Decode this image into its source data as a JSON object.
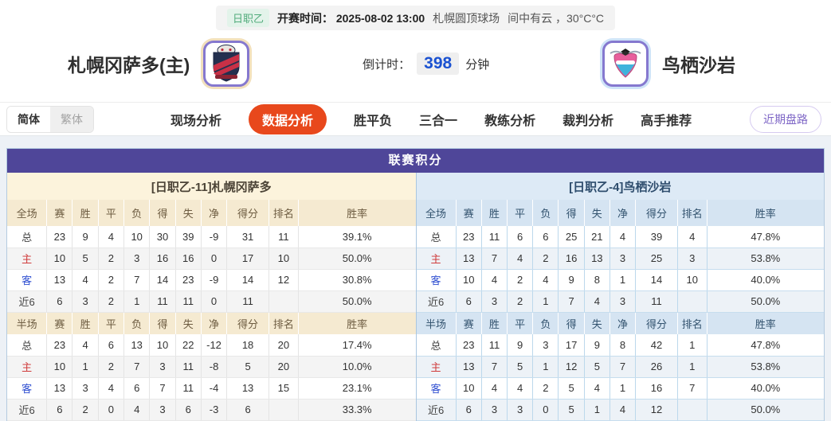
{
  "topbar": {
    "league": "日职乙",
    "kickoff_label": "开赛时间：",
    "kickoff_time": "2025-08-02 13:00",
    "venue": "札幌圆顶球场",
    "weather": "间中有云 ，30°C°C"
  },
  "match": {
    "home_name": "札幌冈萨多(主)",
    "away_name": "鸟栖沙岩",
    "countdown_label": "倒计时：",
    "countdown_value": "398",
    "countdown_unit": "分钟"
  },
  "lang_toggle": {
    "simplified": "简体",
    "traditional": "繁体"
  },
  "nav": {
    "tabs": [
      {
        "label": "现场分析",
        "active": false
      },
      {
        "label": "数据分析",
        "active": true
      },
      {
        "label": "胜平负",
        "active": false
      },
      {
        "label": "三合一",
        "active": false
      },
      {
        "label": "教练分析",
        "active": false
      },
      {
        "label": "裁判分析",
        "active": false
      },
      {
        "label": "高手推荐",
        "active": false
      }
    ],
    "recent_button": "近期盘路"
  },
  "colors": {
    "accent_purple": "#4f4699",
    "active_tab": "#e8481c",
    "home_row_label": "#d03c3c",
    "away_row_label": "#2f4fd1",
    "countdown_blue": "#1b52d1",
    "league_green": "#51ab7b"
  },
  "league_table": {
    "title": "联赛积分",
    "full_header": [
      "全场",
      "赛",
      "胜",
      "平",
      "负",
      "得",
      "失",
      "净",
      "得分",
      "排名",
      "胜率"
    ],
    "half_header": [
      "半场",
      "赛",
      "胜",
      "平",
      "负",
      "得",
      "失",
      "净",
      "得分",
      "排名",
      "胜率"
    ],
    "home": {
      "team_header": "[日职乙-11]札幌冈萨多",
      "full_rows": [
        {
          "label": "总",
          "type": "total",
          "values": [
            "23",
            "9",
            "4",
            "10",
            "30",
            "39",
            "-9",
            "31",
            "11",
            "39.1%"
          ]
        },
        {
          "label": "主",
          "type": "home",
          "values": [
            "10",
            "5",
            "2",
            "3",
            "16",
            "16",
            "0",
            "17",
            "10",
            "50.0%"
          ]
        },
        {
          "label": "客",
          "type": "away",
          "values": [
            "13",
            "4",
            "2",
            "7",
            "14",
            "23",
            "-9",
            "14",
            "12",
            "30.8%"
          ]
        },
        {
          "label": "近6",
          "type": "recent",
          "values": [
            "6",
            "3",
            "2",
            "1",
            "11",
            "11",
            "0",
            "11",
            "",
            "50.0%"
          ]
        }
      ],
      "half_rows": [
        {
          "label": "总",
          "type": "total",
          "values": [
            "23",
            "4",
            "6",
            "13",
            "10",
            "22",
            "-12",
            "18",
            "20",
            "17.4%"
          ]
        },
        {
          "label": "主",
          "type": "home",
          "values": [
            "10",
            "1",
            "2",
            "7",
            "3",
            "11",
            "-8",
            "5",
            "20",
            "10.0%"
          ]
        },
        {
          "label": "客",
          "type": "away",
          "values": [
            "13",
            "3",
            "4",
            "6",
            "7",
            "11",
            "-4",
            "13",
            "15",
            "23.1%"
          ]
        },
        {
          "label": "近6",
          "type": "recent",
          "values": [
            "6",
            "2",
            "0",
            "4",
            "3",
            "6",
            "-3",
            "6",
            "",
            "33.3%"
          ]
        }
      ]
    },
    "away": {
      "team_header": "[日职乙-4]鸟栖沙岩",
      "full_rows": [
        {
          "label": "总",
          "type": "total",
          "values": [
            "23",
            "11",
            "6",
            "6",
            "25",
            "21",
            "4",
            "39",
            "4",
            "47.8%"
          ]
        },
        {
          "label": "主",
          "type": "home",
          "values": [
            "13",
            "7",
            "4",
            "2",
            "16",
            "13",
            "3",
            "25",
            "3",
            "53.8%"
          ]
        },
        {
          "label": "客",
          "type": "away",
          "values": [
            "10",
            "4",
            "2",
            "4",
            "9",
            "8",
            "1",
            "14",
            "10",
            "40.0%"
          ]
        },
        {
          "label": "近6",
          "type": "recent",
          "values": [
            "6",
            "3",
            "2",
            "1",
            "7",
            "4",
            "3",
            "11",
            "",
            "50.0%"
          ]
        }
      ],
      "half_rows": [
        {
          "label": "总",
          "type": "total",
          "values": [
            "23",
            "11",
            "9",
            "3",
            "17",
            "9",
            "8",
            "42",
            "1",
            "47.8%"
          ]
        },
        {
          "label": "主",
          "type": "home",
          "values": [
            "13",
            "7",
            "5",
            "1",
            "12",
            "5",
            "7",
            "26",
            "1",
            "53.8%"
          ]
        },
        {
          "label": "客",
          "type": "away",
          "values": [
            "10",
            "4",
            "4",
            "2",
            "5",
            "4",
            "1",
            "16",
            "7",
            "40.0%"
          ]
        },
        {
          "label": "近6",
          "type": "recent",
          "values": [
            "6",
            "3",
            "3",
            "0",
            "5",
            "1",
            "4",
            "12",
            "",
            "50.0%"
          ]
        }
      ]
    }
  }
}
